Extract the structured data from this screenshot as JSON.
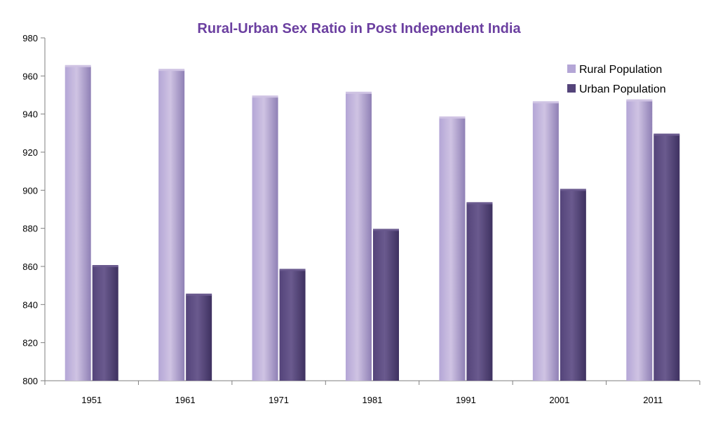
{
  "colors": {
    "title": "#6B3FA0",
    "rural_light": "#CFC3E3",
    "rural_mid": "#B4A6D6",
    "rural_dark": "#8F80B5",
    "urban_light": "#6A5A8E",
    "urban_mid": "#54447A",
    "urban_dark": "#3E3160",
    "axis": "#7F7F7F"
  },
  "chart_data": {
    "type": "bar",
    "title": "Rural-Urban Sex Ratio in Post Independent India",
    "xlabel": "",
    "ylabel": "",
    "categories": [
      "1951",
      "1961",
      "1971",
      "1981",
      "1991",
      "2001",
      "2011"
    ],
    "series": [
      {
        "name": "Rural Population",
        "values": [
          965,
          963,
          949,
          951,
          938,
          946,
          947
        ]
      },
      {
        "name": "Urban Population",
        "values": [
          860,
          845,
          858,
          879,
          893,
          900,
          929
        ]
      }
    ],
    "ylim": [
      800,
      980
    ],
    "yticks": [
      800,
      820,
      840,
      860,
      880,
      900,
      920,
      940,
      960,
      980
    ],
    "grid": false,
    "legend_position": "top-right"
  }
}
